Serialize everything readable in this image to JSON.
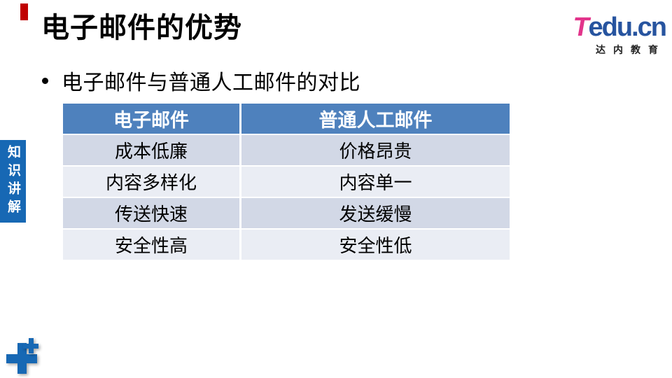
{
  "slide": {
    "title": "电子邮件的优势",
    "bullet": "电子邮件与普通人工邮件的对比",
    "side_tab": "知识讲解",
    "logo": {
      "brand_t": "T",
      "brand_rest": "edu.cn",
      "subtitle": "达内教育"
    },
    "table": {
      "headers": [
        "电子邮件",
        "普通人工邮件"
      ],
      "rows": [
        [
          "成本低廉",
          "价格昂贵"
        ],
        [
          "内容多样化",
          "内容单一"
        ],
        [
          "传送快速",
          "发送缓慢"
        ],
        [
          "安全性高",
          "安全性低"
        ]
      ]
    },
    "colors": {
      "accent_blue": "#1768B4",
      "table_header_blue": "#4E81BD",
      "row_band_dark": "#D2D8E6",
      "row_band_light": "#EAEDF4",
      "red_accent": "#C00000",
      "logo_pink": "#E2348B",
      "logo_blue": "#27549F"
    }
  }
}
